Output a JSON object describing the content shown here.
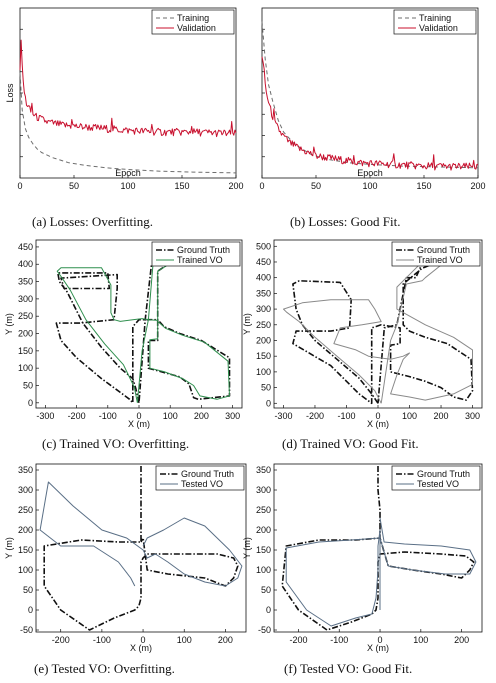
{
  "chart_data": [
    {
      "id": "a",
      "type": "line",
      "caption": "(a) Losses: Overfitting.",
      "xlabel": "Epoch",
      "ylabel": "Loss",
      "xlim": [
        0,
        200
      ],
      "ylim": [
        0,
        1
      ],
      "xticks": [
        "0",
        "50",
        "100",
        "150",
        "200"
      ],
      "yticks": [],
      "legend": {
        "position": "top-right",
        "entries": [
          "Training",
          "Validation"
        ]
      },
      "series": [
        {
          "name": "Training",
          "style": "dashed",
          "color": "#6e6e6e",
          "x": [
            0,
            2,
            5,
            8,
            12,
            16,
            20,
            30,
            45,
            60,
            80,
            100,
            130,
            160,
            200
          ],
          "y": [
            0.62,
            0.4,
            0.29,
            0.24,
            0.2,
            0.17,
            0.15,
            0.12,
            0.09,
            0.075,
            0.06,
            0.05,
            0.04,
            0.035,
            0.03
          ]
        },
        {
          "name": "Validation",
          "style": "solid",
          "color": "#c8102e",
          "noisy": true,
          "x": [
            0,
            1,
            2,
            4,
            6,
            10,
            15,
            25,
            40,
            60,
            80,
            100,
            130,
            160,
            200
          ],
          "y": [
            0.65,
            0.82,
            0.65,
            0.5,
            0.44,
            0.39,
            0.36,
            0.33,
            0.31,
            0.3,
            0.29,
            0.28,
            0.27,
            0.27,
            0.26
          ]
        }
      ]
    },
    {
      "id": "b",
      "type": "line",
      "caption": "(b) Losses: Good Fit.",
      "xlabel": "Epoch",
      "ylabel": "",
      "xlim": [
        0,
        200
      ],
      "ylim": [
        0,
        1
      ],
      "xticks": [
        "0",
        "50",
        "100",
        "150",
        "200"
      ],
      "yticks": [],
      "legend": {
        "position": "top-right",
        "entries": [
          "Training",
          "Validation"
        ]
      },
      "series": [
        {
          "name": "Training",
          "style": "dashed",
          "color": "#6e6e6e",
          "x": [
            0,
            3,
            6,
            10,
            15,
            20,
            30,
            45,
            60,
            80,
            100,
            130,
            160,
            200
          ],
          "y": [
            0.92,
            0.7,
            0.55,
            0.45,
            0.34,
            0.27,
            0.2,
            0.14,
            0.11,
            0.09,
            0.08,
            0.07,
            0.065,
            0.06
          ]
        },
        {
          "name": "Validation",
          "style": "solid",
          "color": "#c8102e",
          "noisy": true,
          "x": [
            0,
            2,
            4,
            8,
            12,
            18,
            25,
            35,
            50,
            70,
            90,
            120,
            150,
            200
          ],
          "y": [
            0.72,
            0.62,
            0.5,
            0.4,
            0.32,
            0.26,
            0.21,
            0.17,
            0.13,
            0.11,
            0.09,
            0.08,
            0.07,
            0.065
          ]
        }
      ]
    },
    {
      "id": "c",
      "type": "line",
      "caption": "(c) Trained VO: Overfitting.",
      "xlabel": "X (m)",
      "ylabel": "Y (m)",
      "xlim": [
        -330,
        330
      ],
      "ylim": [
        -15,
        470
      ],
      "xticks": [
        -300,
        -200,
        -100,
        0,
        100,
        200,
        300
      ],
      "yticks": [
        0,
        50,
        100,
        150,
        200,
        250,
        300,
        350,
        400,
        450
      ],
      "legend": {
        "position": "top-right",
        "entries": [
          "Ground Truth",
          "Trained VO"
        ]
      },
      "series": [
        {
          "name": "Ground Truth",
          "style": "dashdot",
          "color": "#111111",
          "x": [
            0,
            -10,
            -20,
            -60,
            -120,
            -180,
            -230,
            -255,
            -260,
            -100,
            -95,
            -180,
            -240,
            -250,
            -70,
            -70,
            -80,
            -190,
            -265,
            -250,
            -200,
            -120,
            -60,
            -30,
            -20,
            -20,
            0,
            20,
            20,
            60,
            60,
            30,
            30,
            70,
            130,
            160,
            175,
            190,
            240,
            290,
            290,
            200,
            130,
            80,
            60,
            60,
            60,
            110,
            110,
            80,
            80,
            40,
            20,
            0
          ],
          "y": [
            0,
            40,
            70,
            100,
            160,
            230,
            320,
            350,
            375,
            375,
            330,
            330,
            330,
            360,
            370,
            330,
            240,
            230,
            230,
            180,
            130,
            70,
            30,
            10,
            0,
            220,
            240,
            240,
            240,
            240,
            180,
            180,
            100,
            90,
            75,
            55,
            15,
            10,
            15,
            20,
            130,
            180,
            200,
            220,
            240,
            260,
            380,
            410,
            440,
            440,
            400,
            400,
            240,
            0
          ]
        },
        {
          "name": "Trained VO",
          "style": "solid",
          "color": "#2f8f4e",
          "x": [
            -5,
            -15,
            -50,
            -110,
            -170,
            -220,
            -250,
            -262,
            -250,
            -120,
            -90,
            -90,
            -80,
            -60,
            -20,
            10,
            30,
            60,
            60,
            35,
            35,
            80,
            140,
            175,
            195,
            250,
            290,
            285,
            210,
            140,
            85,
            60,
            60,
            60,
            105,
            105,
            90,
            85,
            45,
            30,
            10,
            -5
          ],
          "y": [
            0,
            45,
            110,
            170,
            240,
            325,
            365,
            380,
            390,
            390,
            340,
            260,
            240,
            235,
            240,
            243,
            240,
            238,
            185,
            182,
            100,
            90,
            70,
            50,
            20,
            10,
            20,
            120,
            175,
            195,
            215,
            235,
            260,
            380,
            405,
            440,
            445,
            405,
            400,
            240,
            150,
            0
          ]
        }
      ]
    },
    {
      "id": "d",
      "type": "line",
      "caption": "(d) Trained VO: Good Fit.",
      "xlabel": "X (m)",
      "ylabel": "Y (m)",
      "xlim": [
        -330,
        330
      ],
      "ylim": [
        -15,
        520
      ],
      "xticks": [
        -300,
        -200,
        -100,
        0,
        100,
        200,
        300
      ],
      "yticks": [
        0,
        50,
        100,
        150,
        200,
        250,
        300,
        350,
        400,
        450,
        500
      ],
      "legend": {
        "position": "top-right",
        "entries": [
          "Ground Truth",
          "Trained VO"
        ]
      },
      "series": [
        {
          "name": "Ground Truth",
          "style": "dashdot",
          "color": "#111111",
          "x": [
            0,
            -20,
            -60,
            -130,
            -200,
            -240,
            -260,
            -270,
            -250,
            -120,
            -85,
            -90,
            -150,
            -260,
            -270,
            -150,
            -100,
            -60,
            -20,
            -20,
            10,
            40,
            70,
            70,
            40,
            40,
            100,
            150,
            200,
            240,
            280,
            300,
            295,
            220,
            150,
            100,
            80,
            80,
            140,
            165,
            140,
            120,
            90,
            60,
            20,
            0
          ],
          "y": [
            0,
            30,
            80,
            140,
            200,
            250,
            300,
            380,
            390,
            385,
            330,
            240,
            230,
            230,
            190,
            120,
            70,
            30,
            0,
            240,
            250,
            245,
            240,
            190,
            185,
            100,
            85,
            70,
            50,
            20,
            10,
            40,
            140,
            190,
            210,
            230,
            250,
            380,
            430,
            440,
            445,
            400,
            400,
            250,
            240,
            0
          ]
        },
        {
          "name": "Trained VO",
          "style": "solid",
          "color": "#8a8a8a",
          "x": [
            10,
            -10,
            -60,
            -130,
            -200,
            -250,
            -290,
            -300,
            -240,
            -150,
            -30,
            -10,
            10,
            -50,
            -120,
            -140,
            -70,
            -30,
            40,
            80,
            100,
            80,
            60,
            40,
            100,
            150,
            240,
            300,
            300,
            240,
            150,
            60,
            60,
            150,
            220,
            200,
            150,
            140,
            90,
            60,
            40,
            10
          ],
          "y": [
            0,
            40,
            90,
            150,
            210,
            260,
            290,
            300,
            320,
            330,
            330,
            300,
            260,
            250,
            240,
            190,
            170,
            150,
            140,
            150,
            160,
            140,
            90,
            30,
            20,
            10,
            30,
            60,
            170,
            210,
            250,
            300,
            370,
            460,
            470,
            440,
            400,
            390,
            380,
            250,
            200,
            0
          ]
        }
      ]
    },
    {
      "id": "e",
      "type": "line",
      "caption": "(e) Tested VO: Overfitting.",
      "xlabel": "X (m)",
      "ylabel": "Y (m)",
      "xlim": [
        -260,
        250
      ],
      "ylim": [
        -55,
        365
      ],
      "xticks": [
        -200,
        -100,
        0,
        100,
        200
      ],
      "yticks": [
        -50,
        0,
        50,
        100,
        150,
        200,
        250,
        300,
        350
      ],
      "legend": {
        "position": "top-right",
        "entries": [
          "Ground Truth",
          "Tested VO"
        ]
      },
      "series": [
        {
          "name": "Ground Truth",
          "style": "dashdot",
          "color": "#111111",
          "x": [
            -5,
            -5,
            -5,
            -5,
            -60,
            -150,
            -240,
            -240,
            -200,
            -130,
            -70,
            -20,
            -10,
            -5,
            -5,
            0,
            10,
            80,
            180,
            220,
            230,
            220,
            200,
            150,
            60,
            10,
            0,
            -5
          ],
          "y": [
            360,
            300,
            250,
            170,
            170,
            175,
            160,
            60,
            0,
            -50,
            -20,
            0,
            10,
            30,
            120,
            130,
            140,
            140,
            140,
            130,
            110,
            80,
            60,
            80,
            90,
            100,
            180,
            170
          ]
        },
        {
          "name": "Tested VO",
          "style": "solid",
          "color": "#5a6f86",
          "x": [
            0,
            10,
            50,
            100,
            150,
            210,
            240,
            230,
            200,
            150,
            100,
            60,
            30,
            10,
            0,
            -40,
            -100,
            -170,
            -230,
            -250,
            -200,
            -120,
            -60,
            -30,
            -20
          ],
          "y": [
            160,
            180,
            200,
            230,
            210,
            150,
            110,
            80,
            60,
            70,
            90,
            120,
            140,
            130,
            150,
            180,
            200,
            260,
            320,
            200,
            160,
            160,
            120,
            80,
            60
          ]
        }
      ]
    },
    {
      "id": "f",
      "type": "line",
      "caption": "(f) Tested VO: Good Fit.",
      "xlabel": "X (m)",
      "ylabel": "Y (m)",
      "xlim": [
        -260,
        250
      ],
      "ylim": [
        -55,
        365
      ],
      "xticks": [
        -200,
        -100,
        0,
        100,
        200
      ],
      "yticks": [
        -50,
        0,
        50,
        100,
        150,
        200,
        250,
        300,
        350
      ],
      "legend": {
        "position": "top-right",
        "entries": [
          "Ground Truth",
          "Tested VO"
        ]
      },
      "series": [
        {
          "name": "Ground Truth",
          "style": "dashdot",
          "color": "#111111",
          "x": [
            -5,
            -5,
            0,
            0,
            -60,
            -150,
            -230,
            -240,
            -200,
            -130,
            -70,
            -20,
            -10,
            -5,
            -5,
            0,
            60,
            150,
            210,
            230,
            220,
            200,
            150,
            80,
            20,
            0,
            0
          ],
          "y": [
            360,
            300,
            250,
            180,
            175,
            175,
            160,
            60,
            0,
            -50,
            -30,
            -10,
            0,
            30,
            120,
            140,
            145,
            140,
            135,
            120,
            100,
            80,
            90,
            100,
            110,
            180,
            220
          ]
        },
        {
          "name": "Tested VO",
          "style": "solid",
          "color": "#5a6f86",
          "x": [
            0,
            10,
            60,
            150,
            220,
            235,
            220,
            160,
            80,
            20,
            0,
            -70,
            -150,
            -230,
            -230,
            -180,
            -120,
            -60,
            -20,
            -10,
            -5,
            -5,
            0,
            0
          ],
          "y": [
            230,
            170,
            165,
            160,
            150,
            120,
            90,
            90,
            100,
            110,
            180,
            175,
            170,
            155,
            70,
            0,
            -40,
            -20,
            -10,
            30,
            100,
            160,
            200,
            0
          ]
        }
      ]
    }
  ]
}
